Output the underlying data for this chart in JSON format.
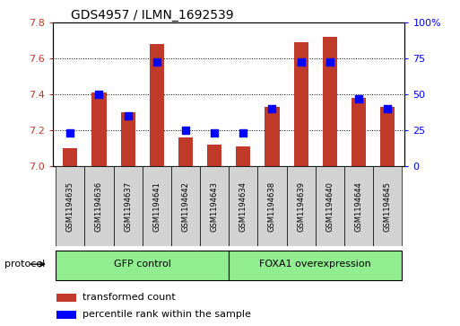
{
  "title": "GDS4957 / ILMN_1692539",
  "samples": [
    "GSM1194635",
    "GSM1194636",
    "GSM1194637",
    "GSM1194641",
    "GSM1194642",
    "GSM1194643",
    "GSM1194634",
    "GSM1194638",
    "GSM1194639",
    "GSM1194640",
    "GSM1194644",
    "GSM1194645"
  ],
  "transformed_count": [
    7.1,
    7.41,
    7.3,
    7.68,
    7.16,
    7.12,
    7.11,
    7.33,
    7.69,
    7.72,
    7.38,
    7.33
  ],
  "percentile_rank": [
    23,
    50,
    35,
    73,
    25,
    23,
    23,
    40,
    73,
    73,
    47,
    40
  ],
  "ylim_left": [
    7.0,
    7.8
  ],
  "ylim_right": [
    0,
    100
  ],
  "yticks_left": [
    7.0,
    7.2,
    7.4,
    7.6,
    7.8
  ],
  "yticks_right": [
    0,
    25,
    50,
    75,
    100
  ],
  "groups": [
    {
      "label": "GFP control",
      "start": 0,
      "end": 6,
      "color": "#90EE90"
    },
    {
      "label": "FOXA1 overexpression",
      "start": 6,
      "end": 12,
      "color": "#90EE90"
    }
  ],
  "bar_color": "#C0392B",
  "dot_color": "#0000FF",
  "background_color": "#FFFFFF",
  "plot_bg_color": "#FFFFFF",
  "tick_label_color_left": "#C0392B",
  "tick_label_color_right": "#0000FF",
  "grid_color": "#000000",
  "protocol_text": "protocol",
  "legend_items": [
    {
      "label": "transformed count",
      "color": "#C0392B"
    },
    {
      "label": "percentile rank within the sample",
      "color": "#0000FF"
    }
  ],
  "bar_width": 0.5,
  "dot_size": 28,
  "title_fontsize": 10
}
